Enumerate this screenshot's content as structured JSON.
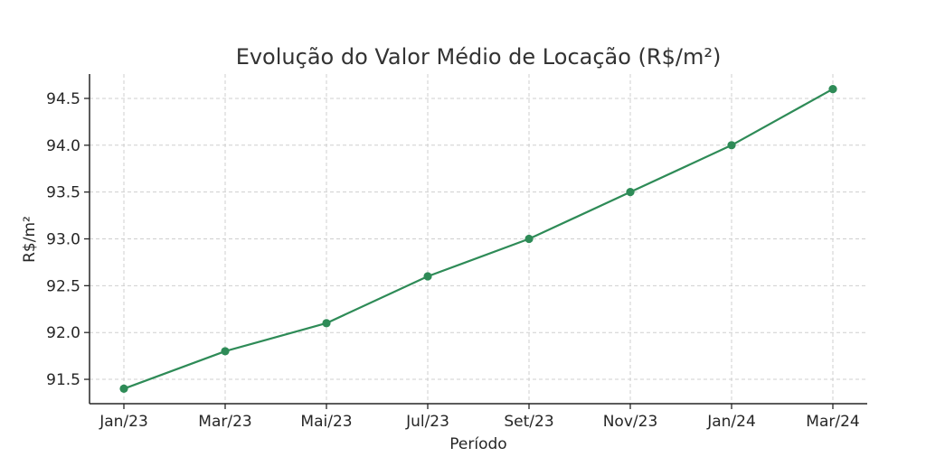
{
  "chart_data": {
    "type": "line",
    "title": "Evolução do Valor Médio de Locação (R$/m²)",
    "xlabel": "Período",
    "ylabel": "R$/m²",
    "categories": [
      "Jan/23",
      "Mar/23",
      "Mai/23",
      "Jul/23",
      "Set/23",
      "Nov/23",
      "Jan/24",
      "Mar/24"
    ],
    "series": [
      {
        "values": [
          91.4,
          91.8,
          92.1,
          92.6,
          93.0,
          93.5,
          94.0,
          94.6
        ],
        "color": "#2e8b57",
        "marker": "circle"
      }
    ],
    "y_ticks": [
      "91.5",
      "92.0",
      "92.5",
      "93.0",
      "93.5",
      "94.0",
      "94.5"
    ],
    "ylim": [
      91.24,
      94.76
    ],
    "grid": true,
    "legend": "none"
  }
}
